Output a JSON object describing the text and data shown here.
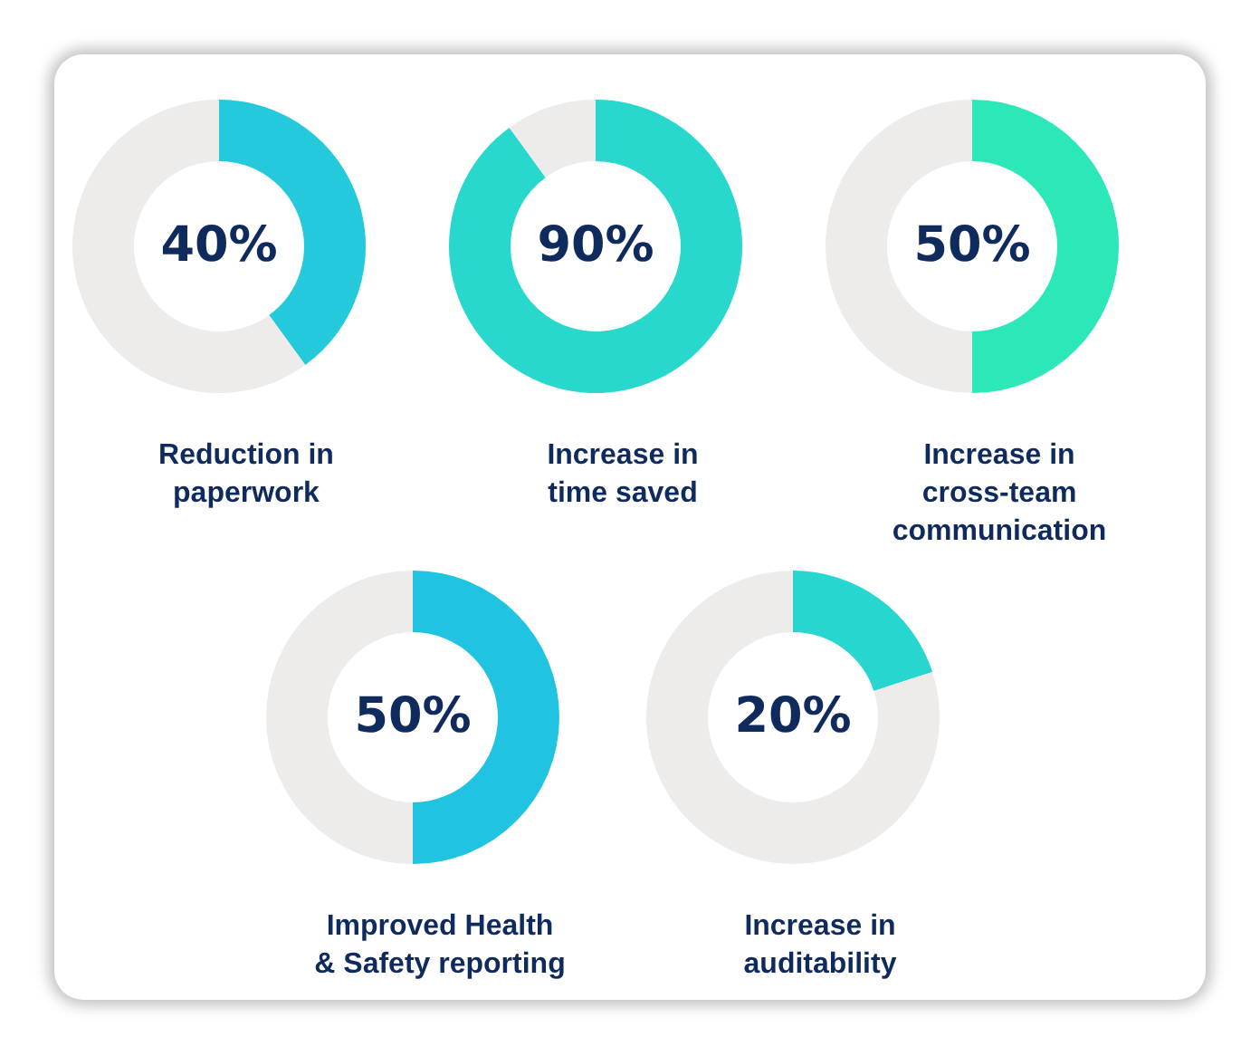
{
  "chart_data": [
    {
      "type": "donut",
      "title": "Reduction in paperwork",
      "categories": [
        null,
        null
      ],
      "values": [
        40,
        60
      ],
      "colors": [
        "#24c9db",
        "#eeecea"
      ],
      "value_labels": [
        "40%",
        null
      ]
    },
    {
      "type": "donut",
      "title": "Increase in time saved",
      "categories": [
        null,
        null
      ],
      "values": [
        90,
        10
      ],
      "colors": [
        "#28d8cc",
        "#eeecea"
      ],
      "value_labels": [
        "90%",
        null
      ]
    },
    {
      "type": "donut",
      "title": "Increase in cross-team communication",
      "categories": [
        null,
        null
      ],
      "values": [
        50,
        50
      ],
      "colors": [
        "#2ce8b8",
        "#eeecea"
      ],
      "value_labels": [
        "50%",
        null
      ]
    },
    {
      "type": "donut",
      "title": "Improved Health & Safety reporting",
      "categories": [
        null,
        null
      ],
      "values": [
        50,
        50
      ],
      "colors": [
        "#20c4e0",
        "#eeecea"
      ],
      "value_labels": [
        "50%",
        null
      ]
    },
    {
      "type": "donut",
      "title": "Increase in auditability",
      "categories": [
        null,
        null
      ],
      "values": [
        20,
        80
      ],
      "colors": [
        "#28d6d0",
        "#eeecea"
      ],
      "value_labels": [
        "20%",
        null
      ]
    }
  ]
}
